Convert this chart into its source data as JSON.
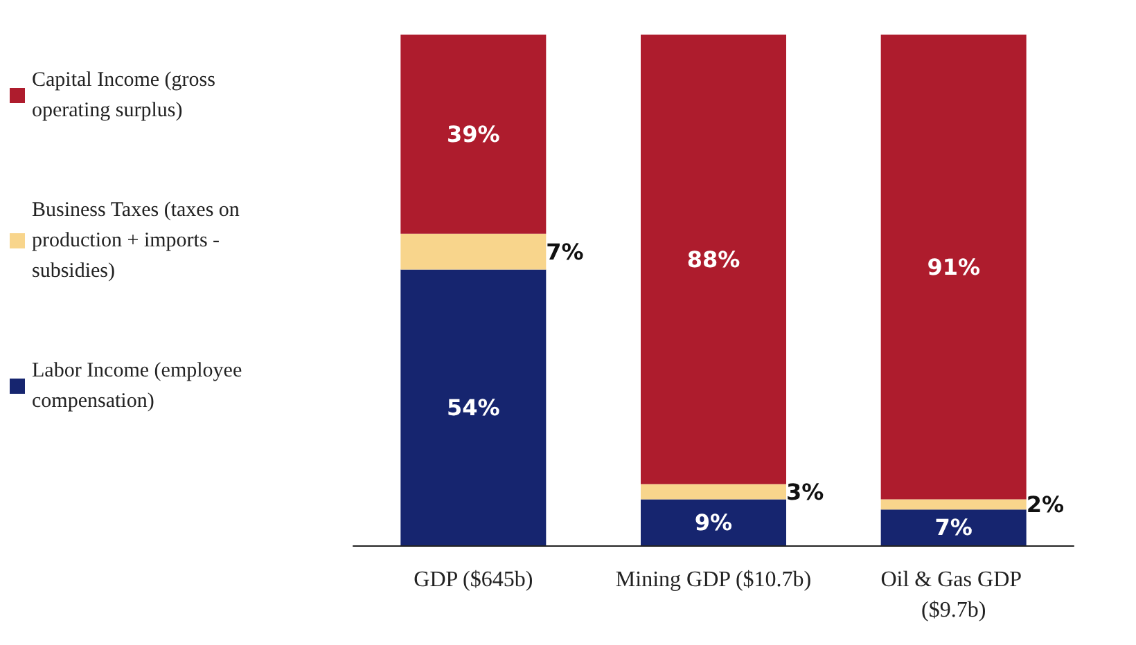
{
  "chart_data": {
    "type": "bar",
    "stacked": true,
    "legend": "left",
    "categories": [
      "GDP ($645b)",
      "Mining GDP ($10.7b)",
      "Oil & Gas GDP ($9.7b)"
    ],
    "series": [
      {
        "name": "Labor Income (employee compensation)",
        "color": "#16256f",
        "values": [
          54,
          9,
          7
        ],
        "value_labels": [
          "54%",
          "9%",
          "7%"
        ]
      },
      {
        "name": "Business Taxes (taxes on production + imports - subsidies)",
        "color": "#f8d58c",
        "values": [
          7,
          3,
          2
        ],
        "value_labels": [
          "7%",
          "3%",
          "2%"
        ]
      },
      {
        "name": "Capital Income (gross operating surplus)",
        "color": "#ae1c2d",
        "values": [
          39,
          88,
          91
        ],
        "value_labels": [
          "39%",
          "88%",
          "91%"
        ]
      }
    ]
  }
}
